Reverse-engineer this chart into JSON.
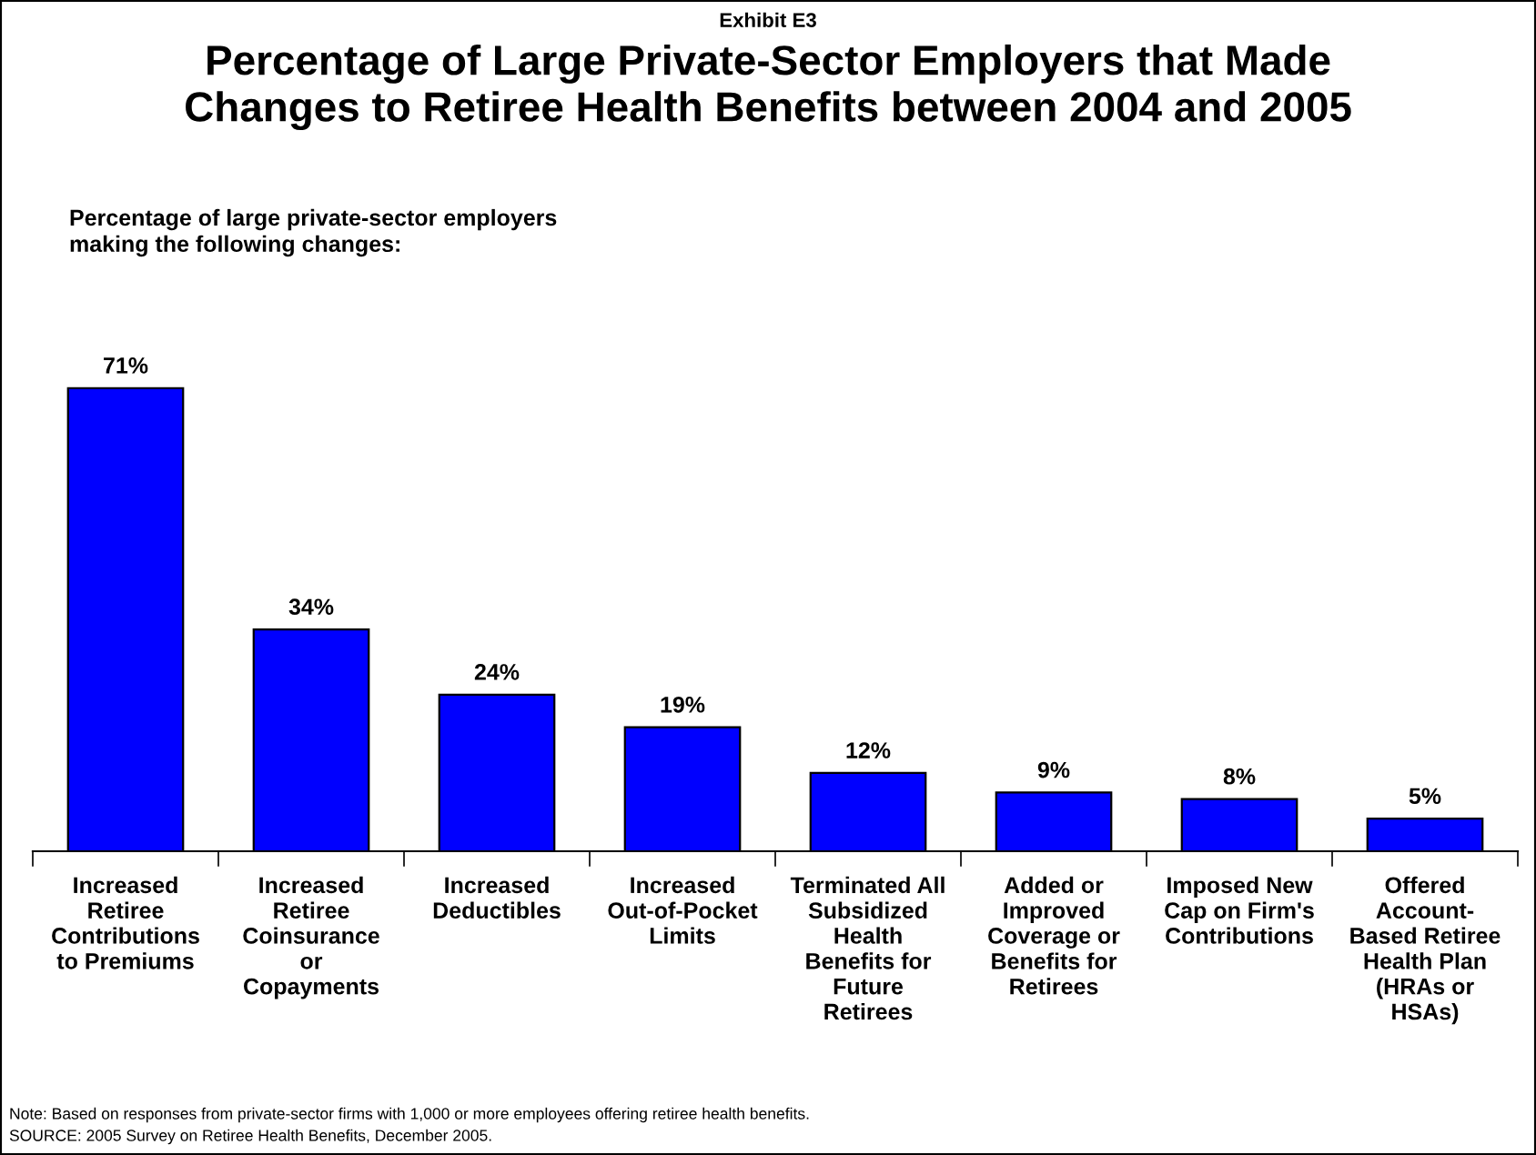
{
  "chart_data": {
    "type": "bar",
    "title": "Percentage of Large Private-Sector Employers that Made\nChanges to Retiree Health Benefits between 2004 and 2005",
    "subtitle": "Percentage of large private-sector employers\nmaking the following changes:",
    "annotations": [
      "Exhibit E3",
      "Note: Based on responses from private-sector firms with 1,000 or more employees offering retiree health benefits.",
      "SOURCE: 2005 Survey on Retiree Health Benefits, December 2005."
    ],
    "categories": [
      "Increased\nRetiree\nContributions\nto Premiums",
      "Increased\nRetiree\nCoinsurance\nor\nCopayments",
      "Increased\nDeductibles",
      "Increased\nOut-of-Pocket\nLimits",
      "Terminated All\nSubsidized\nHealth\nBenefits for\nFuture\nRetirees",
      "Added or\nImproved\nCoverage or\nBenefits for\nRetirees",
      "Imposed New\nCap on Firm's\nContributions",
      "Offered\nAccount-\nBased Retiree\nHealth Plan\n(HRAs or\nHSAs)"
    ],
    "values": [
      71,
      34,
      24,
      19,
      12,
      9,
      8,
      5
    ],
    "value_labels": [
      "71%",
      "34%",
      "24%",
      "19%",
      "12%",
      "9%",
      "8%",
      "5%"
    ],
    "color": "#0000ff",
    "grid": false,
    "legend": false
  }
}
